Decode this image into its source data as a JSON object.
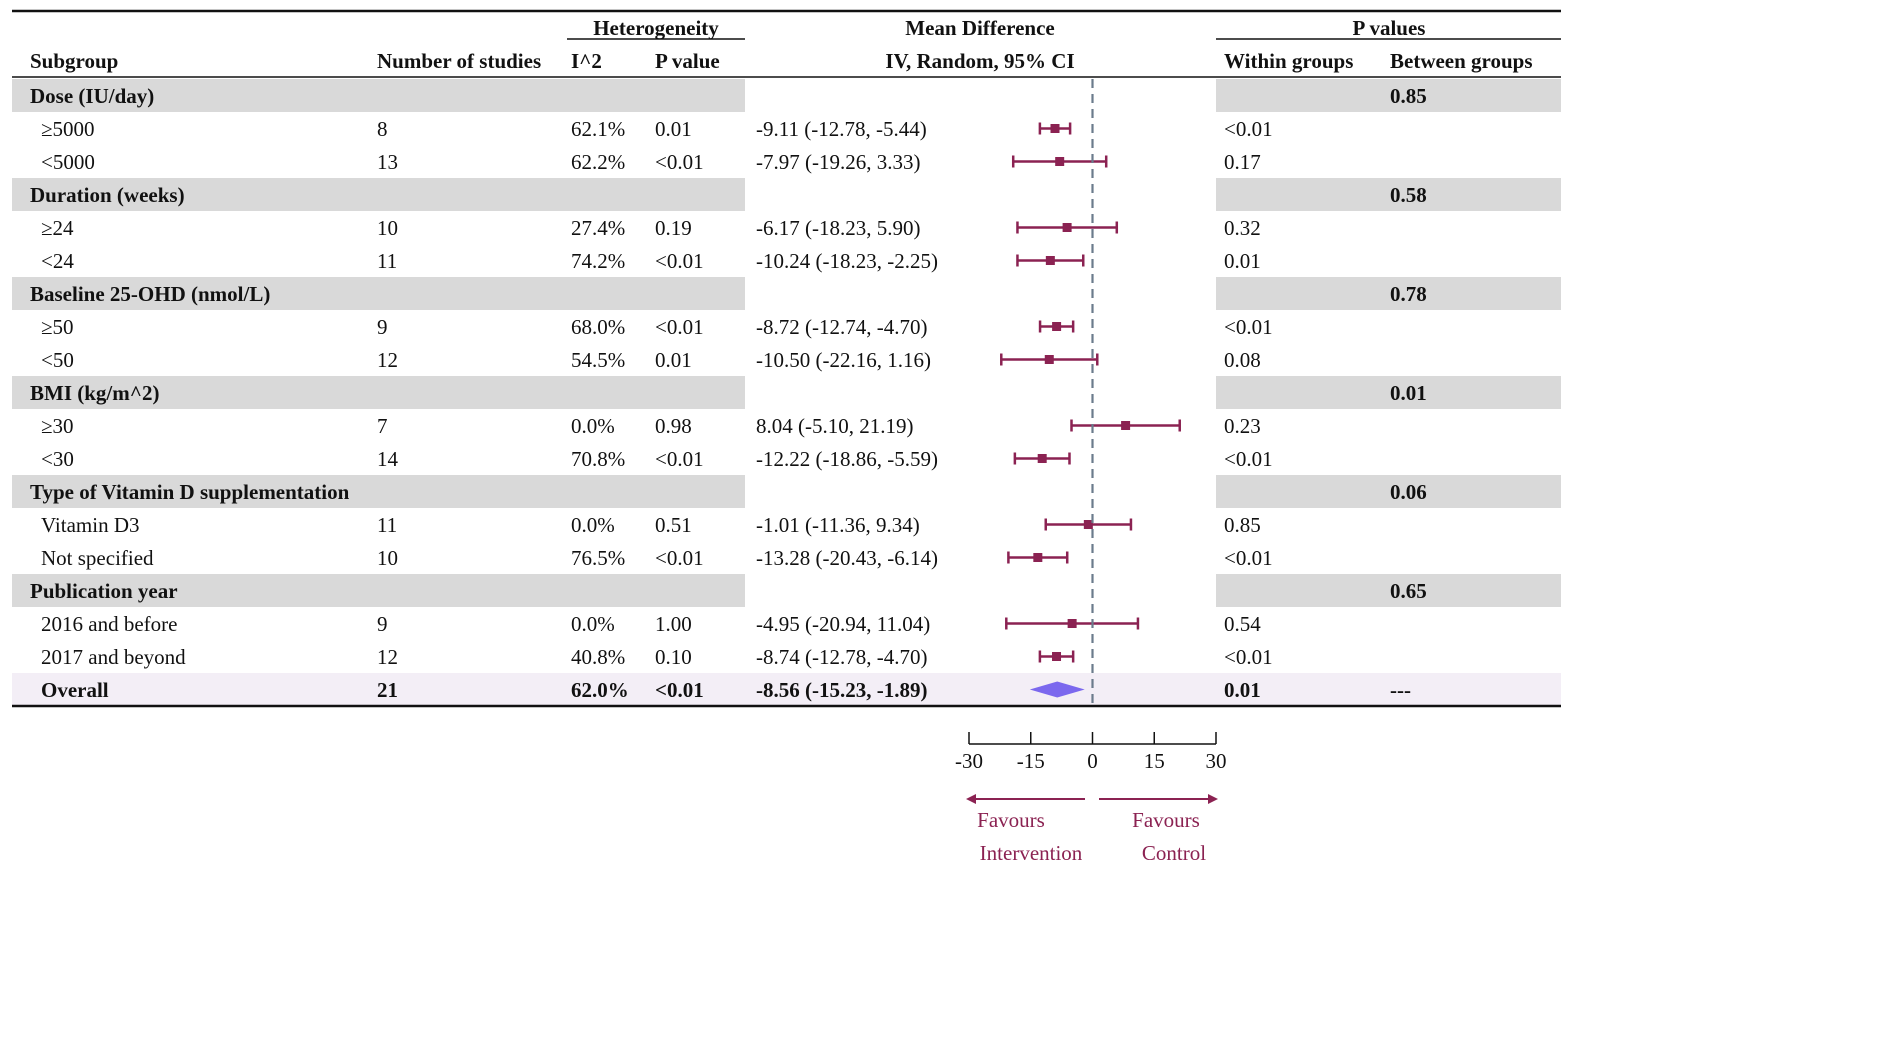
{
  "chart_data": {
    "type": "forest",
    "headers": {
      "subgroup": "Subgroup",
      "n_studies": "Number of studies",
      "heterogeneity": "Heterogeneity",
      "i2": "I^2",
      "het_p": "P value",
      "md_title": "Mean Difference",
      "md_sub": "IV, Random, 95% CI",
      "pvalues": "P values",
      "within": "Within groups",
      "between": "Between groups"
    },
    "axis": {
      "min": -30,
      "max": 30,
      "ticks": [
        -30,
        -15,
        0,
        15,
        30
      ]
    },
    "favours": {
      "left_line1": "Favours",
      "left_line2": "Intervention",
      "right_line1": "Favours",
      "right_line2": "Control"
    },
    "colors": {
      "marker": "#8b2252",
      "diamond": "#7b68ee",
      "group_bg": "#d9d9d9",
      "overall_bg": "#f3eef6",
      "refline": "#6b7b8c"
    },
    "groups": [
      {
        "label": "Dose (IU/day)",
        "between": "0.85",
        "rows": [
          {
            "label": "≥5000",
            "n": "8",
            "i2": "62.1%",
            "p": "0.01",
            "ci_text": "-9.11 (-12.78, -5.44)",
            "md": -9.11,
            "lo": -12.78,
            "hi": -5.44,
            "within": "<0.01"
          },
          {
            "label": "<5000",
            "n": "13",
            "i2": "62.2%",
            "p": "<0.01",
            "ci_text": "-7.97 (-19.26, 3.33)",
            "md": -7.97,
            "lo": -19.26,
            "hi": 3.33,
            "within": "0.17"
          }
        ]
      },
      {
        "label": "Duration (weeks)",
        "between": "0.58",
        "rows": [
          {
            "label": "≥24",
            "n": "10",
            "i2": "27.4%",
            "p": "0.19",
            "ci_text": "-6.17 (-18.23, 5.90)",
            "md": -6.17,
            "lo": -18.23,
            "hi": 5.9,
            "within": "0.32"
          },
          {
            "label": "<24",
            "n": "11",
            "i2": "74.2%",
            "p": "<0.01",
            "ci_text": "-10.24 (-18.23, -2.25)",
            "md": -10.24,
            "lo": -18.23,
            "hi": -2.25,
            "within": "0.01"
          }
        ]
      },
      {
        "label": "Baseline 25-OHD (nmol/L)",
        "between": "0.78",
        "rows": [
          {
            "label": "≥50",
            "n": "9",
            "i2": "68.0%",
            "p": "<0.01",
            "ci_text": "-8.72 (-12.74, -4.70)",
            "md": -8.72,
            "lo": -12.74,
            "hi": -4.7,
            "within": "<0.01"
          },
          {
            "label": "<50",
            "n": "12",
            "i2": "54.5%",
            "p": "0.01",
            "ci_text": "-10.50 (-22.16, 1.16)",
            "md": -10.5,
            "lo": -22.16,
            "hi": 1.16,
            "within": "0.08"
          }
        ]
      },
      {
        "label": "BMI (kg/m^2)",
        "between": "0.01",
        "rows": [
          {
            "label": "≥30",
            "n": "7",
            "i2": "0.0%",
            "p": "0.98",
            "ci_text": "8.04 (-5.10, 21.19)",
            "md": 8.04,
            "lo": -5.1,
            "hi": 21.19,
            "within": "0.23"
          },
          {
            "label": "<30",
            "n": "14",
            "i2": "70.8%",
            "p": "<0.01",
            "ci_text": "-12.22 (-18.86, -5.59)",
            "md": -12.22,
            "lo": -18.86,
            "hi": -5.59,
            "within": "<0.01"
          }
        ]
      },
      {
        "label": "Type of Vitamin D supplementation",
        "between": "0.06",
        "rows": [
          {
            "label": "Vitamin D3",
            "n": "11",
            "i2": "0.0%",
            "p": "0.51",
            "ci_text": "-1.01 (-11.36, 9.34)",
            "md": -1.01,
            "lo": -11.36,
            "hi": 9.34,
            "within": "0.85"
          },
          {
            "label": "Not specified",
            "n": "10",
            "i2": "76.5%",
            "p": "<0.01",
            "ci_text": "-13.28 (-20.43, -6.14)",
            "md": -13.28,
            "lo": -20.43,
            "hi": -6.14,
            "within": "<0.01"
          }
        ]
      },
      {
        "label": "Publication year",
        "between": "0.65",
        "rows": [
          {
            "label": "2016 and before",
            "n": "9",
            "i2": "0.0%",
            "p": "1.00",
            "ci_text": "-4.95 (-20.94, 11.04)",
            "md": -4.95,
            "lo": -20.94,
            "hi": 11.04,
            "within": "0.54"
          },
          {
            "label": "2017 and beyond",
            "n": "12",
            "i2": "40.8%",
            "p": "0.10",
            "ci_text": "-8.74 (-12.78, -4.70)",
            "md": -8.74,
            "lo": -12.78,
            "hi": -4.7,
            "within": "<0.01"
          }
        ]
      }
    ],
    "overall": {
      "label": "Overall",
      "n": "21",
      "i2": "62.0%",
      "p": "<0.01",
      "ci_text": "-8.56 (-15.23, -1.89)",
      "md": -8.56,
      "lo": -15.23,
      "hi": -1.89,
      "within": "0.01",
      "between": "---"
    }
  }
}
